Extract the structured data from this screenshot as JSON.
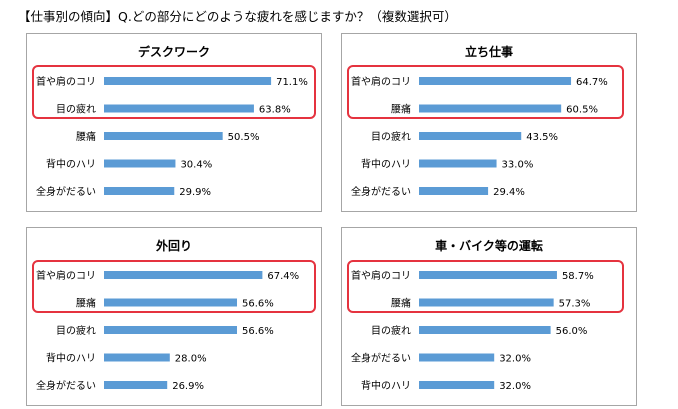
{
  "page": {
    "title": "【仕事別の傾向】Q.どの部分にどのような疲れを感じますか？（複数選択可）"
  },
  "colors": {
    "bar": "#5b9bd5",
    "highlight": "#e5333f",
    "panel_border": "#a6a6a6"
  },
  "chart_data": [
    {
      "type": "bar",
      "orientation": "horizontal",
      "title": "デスクワーク",
      "categories": [
        "首や肩のコリ",
        "目の疲れ",
        "腰痛",
        "背中のハリ",
        "全身がだるい"
      ],
      "values": [
        71.1,
        63.8,
        50.5,
        30.4,
        29.9
      ],
      "value_labels": [
        "71.1%",
        "63.8%",
        "50.5%",
        "30.4%",
        "29.9%"
      ],
      "highlighted_count": 2
    },
    {
      "type": "bar",
      "orientation": "horizontal",
      "title": "立ち仕事",
      "categories": [
        "首や肩のコリ",
        "腰痛",
        "目の疲れ",
        "背中のハリ",
        "全身がだるい"
      ],
      "values": [
        64.7,
        60.5,
        43.5,
        33.0,
        29.4
      ],
      "value_labels": [
        "64.7%",
        "60.5%",
        "43.5%",
        "33.0%",
        "29.4%"
      ],
      "highlighted_count": 2
    },
    {
      "type": "bar",
      "orientation": "horizontal",
      "title": "外回り",
      "categories": [
        "首や肩のコリ",
        "腰痛",
        "目の疲れ",
        "背中のハリ",
        "全身がだるい"
      ],
      "values": [
        67.4,
        56.6,
        56.6,
        28.0,
        26.9
      ],
      "value_labels": [
        "67.4%",
        "56.6%",
        "56.6%",
        "28.0%",
        "26.9%"
      ],
      "highlighted_count": 2
    },
    {
      "type": "bar",
      "orientation": "horizontal",
      "title": "車・バイク等の運転",
      "categories": [
        "首や肩のコリ",
        "腰痛",
        "目の疲れ",
        "全身がだるい",
        "背中のハリ"
      ],
      "values": [
        58.7,
        57.3,
        56.0,
        32.0,
        32.0
      ],
      "value_labels": [
        "58.7%",
        "57.3%",
        "56.0%",
        "32.0%",
        "32.0%"
      ],
      "highlighted_count": 2
    }
  ]
}
